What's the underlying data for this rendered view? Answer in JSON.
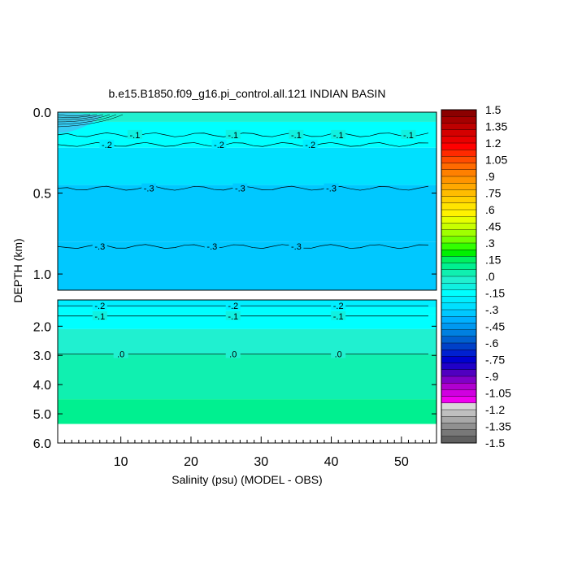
{
  "chart_data": {
    "type": "heatmap",
    "title": "b.e15.B1850.f09_g16.pi_control.all.121 INDIAN BASIN",
    "xlabel": "Salinity (psu) (MODEL - OBS)",
    "ylabel": "DEPTH (km)",
    "xlim": [
      1,
      55
    ],
    "x_ticks": [
      "10",
      "20",
      "30",
      "40",
      "50"
    ],
    "x_tick_values": [
      10,
      20,
      30,
      40,
      50
    ],
    "upper_panel": {
      "ylim": [
        0.0,
        1.1
      ],
      "y_ticks": [
        "0.0",
        "0.5",
        "1.0"
      ],
      "y_tick_values": [
        0.0,
        0.5,
        1.0
      ],
      "bands": [
        {
          "top": 0.0,
          "bottom": 0.06,
          "value": -0.05
        },
        {
          "top": 0.06,
          "bottom": 0.22,
          "value": -0.15
        },
        {
          "top": 0.22,
          "bottom": 0.45,
          "value": -0.25
        },
        {
          "top": 0.45,
          "bottom": 0.8,
          "value": -0.35
        },
        {
          "top": 0.8,
          "bottom": 1.1,
          "value": -0.32
        }
      ],
      "contours": [
        {
          "level": -0.1,
          "depth": 0.14,
          "labels": [
            {
              "x": 12,
              "text": "-.1"
            },
            {
              "x": 26,
              "text": "-.1"
            },
            {
              "x": 35,
              "text": "-.1"
            },
            {
              "x": 41,
              "text": "-.1"
            },
            {
              "x": 51,
              "text": "-.1"
            }
          ]
        },
        {
          "level": -0.2,
          "depth": 0.2,
          "labels": [
            {
              "x": 8,
              "text": "-.2"
            },
            {
              "x": 24,
              "text": "-.2"
            },
            {
              "x": 37,
              "text": "-.2"
            }
          ]
        },
        {
          "level": -0.3,
          "depth": 0.47,
          "labels": [
            {
              "x": 14,
              "text": "-.3"
            },
            {
              "x": 27,
              "text": "-.3"
            },
            {
              "x": 40,
              "text": "-.3"
            }
          ]
        },
        {
          "level": -0.3,
          "depth": 0.83,
          "labels": [
            {
              "x": 7,
              "text": "-.3"
            },
            {
              "x": 23,
              "text": "-.3"
            },
            {
              "x": 35,
              "text": "-.3"
            }
          ]
        }
      ]
    },
    "lower_panel": {
      "ylim": [
        1.1,
        6.0
      ],
      "y_ticks": [
        "2.0",
        "3.0",
        "4.0",
        "5.0",
        "6.0"
      ],
      "y_tick_values": [
        2.0,
        3.0,
        4.0,
        5.0,
        6.0
      ],
      "bands": [
        {
          "top": 1.1,
          "bottom": 1.35,
          "value": -0.22
        },
        {
          "top": 1.35,
          "bottom": 1.6,
          "value": -0.18
        },
        {
          "top": 1.6,
          "bottom": 2.1,
          "value": -0.12
        },
        {
          "top": 2.1,
          "bottom": 2.95,
          "value": -0.05
        },
        {
          "top": 2.95,
          "bottom": 4.5,
          "value": 0.05
        },
        {
          "top": 4.5,
          "bottom": 5.35,
          "value": 0.12
        }
      ],
      "contours": [
        {
          "level": -0.2,
          "depth": 1.3,
          "labels": [
            {
              "x": 7,
              "text": "-.2"
            },
            {
              "x": 26,
              "text": "-.2"
            },
            {
              "x": 41,
              "text": "-.2"
            }
          ]
        },
        {
          "level": -0.1,
          "depth": 1.65,
          "labels": [
            {
              "x": 7,
              "text": "-.1"
            },
            {
              "x": 26,
              "text": "-.1"
            },
            {
              "x": 41,
              "text": "-.1"
            }
          ]
        },
        {
          "level": 0.0,
          "depth": 2.95,
          "labels": [
            {
              "x": 10,
              "text": ".0"
            },
            {
              "x": 26,
              "text": ".0"
            },
            {
              "x": 41,
              "text": ".0"
            }
          ]
        }
      ],
      "data_bottom_depth": 5.35
    },
    "colorbar": {
      "min": -1.5,
      "max": 1.5,
      "labels": [
        "1.5",
        "1.35",
        "1.2",
        "1.05",
        ".9",
        ".75",
        ".6",
        ".45",
        ".3",
        ".15",
        ".0",
        "-.15",
        "-.3",
        "-.45",
        "-.6",
        "-.75",
        "-.9",
        "-1.05",
        "-1.2",
        "-1.35",
        "-1.5"
      ],
      "colors": [
        "#8b0000",
        "#a50000",
        "#be0000",
        "#d40000",
        "#e80000",
        "#ff0000",
        "#ff2a00",
        "#ff4c00",
        "#ff6a00",
        "#ff8000",
        "#ff9400",
        "#ffa800",
        "#ffbc00",
        "#ffd000",
        "#ffe400",
        "#fff200",
        "#e6ff00",
        "#c8ff00",
        "#a0ff00",
        "#73ff00",
        "#33ff00",
        "#00f000",
        "#00f060",
        "#00f090",
        "#10f0b0",
        "#20f0d0",
        "#10f0e0",
        "#00ffff",
        "#00eeff",
        "#00e0ff",
        "#00c8ff",
        "#00b0ff",
        "#0098f0",
        "#0080e0",
        "#0060d0",
        "#0040c8",
        "#0020d0",
        "#0000d0",
        "#2000c8",
        "#5000c0",
        "#8000c8",
        "#b000d0",
        "#d000e0",
        "#f000f0",
        "#d8d8d8",
        "#bfbfbf",
        "#a8a8a8",
        "#909090",
        "#787878",
        "#606060"
      ]
    }
  }
}
